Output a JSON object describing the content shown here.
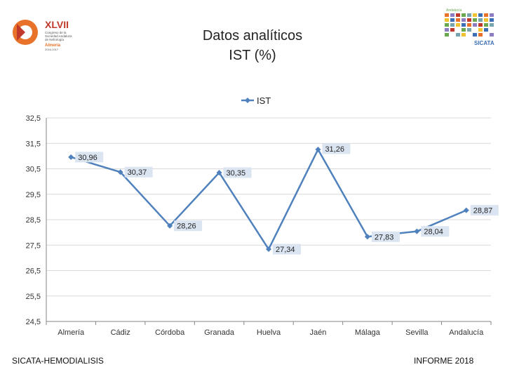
{
  "slide": {
    "title_line1": "Datos analíticos",
    "title_line2": "IST (%)",
    "footer_left": "SICATA-HEMODIALISIS",
    "footer_right": "INFORME 2018",
    "logo_left": {
      "roman": "XLVII",
      "lines": [
        "Congreso de la",
        "Sociedad Andaluza",
        "de Nefrología"
      ],
      "city": "Almería",
      "date": "2016-2017"
    },
    "logo_right": {
      "tagline": "Andalucía",
      "name": "SICATA"
    }
  },
  "colors": {
    "series": "#4f81bd",
    "label_bg": "#dbe5f1",
    "grid": "#d9d9d9",
    "axis": "#868686",
    "logo_orange": "#e8722a",
    "logo_red": "#c0392b",
    "logo_green": "#6aa84f"
  },
  "chart_data": {
    "type": "line",
    "title": "",
    "xlabel": "",
    "ylabel": "",
    "categories": [
      "Almería",
      "Cádiz",
      "Córdoba",
      "Granada",
      "Huelva",
      "Jaén",
      "Málaga",
      "Sevilla",
      "Andalucía"
    ],
    "series": [
      {
        "name": "IST",
        "values": [
          30.96,
          30.37,
          28.26,
          30.35,
          27.34,
          31.26,
          27.83,
          28.04,
          28.87
        ],
        "labels": [
          "30,96",
          "30,37",
          "28,26",
          "30,35",
          "27,34",
          "31,26",
          "27,83",
          "28,04",
          "28,87"
        ]
      }
    ],
    "ylim": [
      24.5,
      32.5
    ],
    "yticks": [
      24.5,
      25.5,
      26.5,
      27.5,
      28.5,
      29.5,
      30.5,
      31.5,
      32.5
    ],
    "ytick_labels": [
      "24,5",
      "25,5",
      "26,5",
      "27,5",
      "28,5",
      "29,5",
      "30,5",
      "31,5",
      "32,5"
    ],
    "legend": {
      "position": "top",
      "entries": [
        "IST"
      ]
    },
    "grid": true,
    "marker": "diamond",
    "data_labels": true
  }
}
